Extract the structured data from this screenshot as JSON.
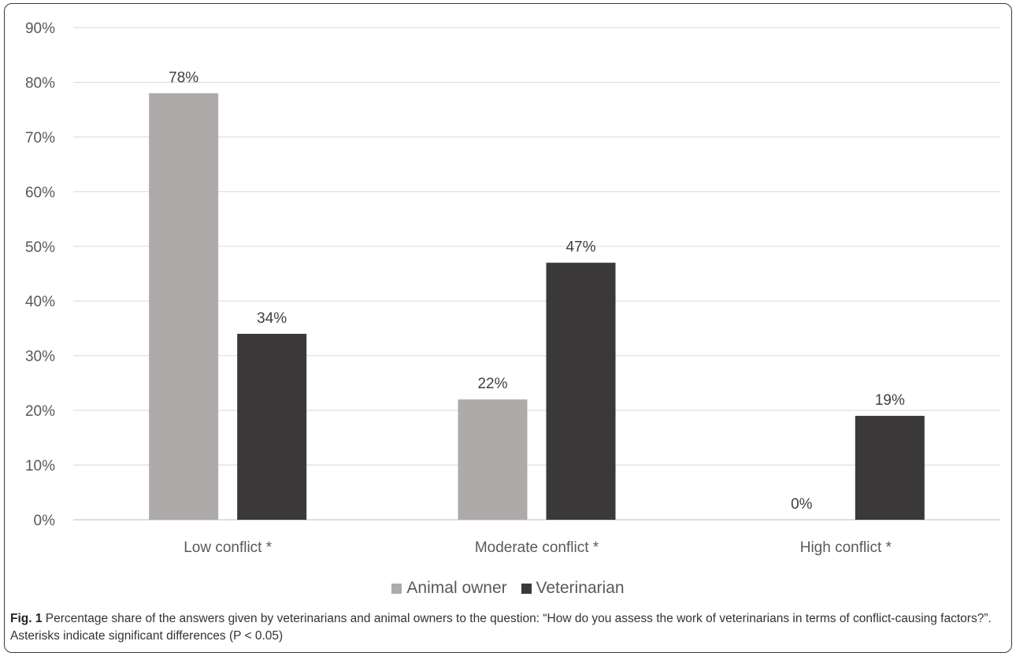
{
  "chart_data": {
    "type": "bar",
    "categories": [
      "Low conflict *",
      "Moderate conflict *",
      "High conflict *"
    ],
    "series": [
      {
        "name": "Animal owner",
        "values": [
          78,
          22,
          0
        ],
        "labels": [
          "78%",
          "22%",
          "0%"
        ],
        "color": "#aeaaaa"
      },
      {
        "name": "Veterinarian",
        "values": [
          34,
          47,
          19
        ],
        "labels": [
          "34%",
          "47%",
          "19%"
        ],
        "color": "#3a3838"
      }
    ],
    "ylim": [
      0,
      90
    ],
    "yticks": [
      "0%",
      "10%",
      "20%",
      "30%",
      "40%",
      "50%",
      "60%",
      "70%",
      "80%",
      "90%"
    ],
    "grid": true,
    "legend_position": "bottom"
  },
  "caption": {
    "label": "Fig. 1",
    "text": " Percentage share of the answers given by veterinarians and animal owners to the question: “How do you assess the work of veterinarians in terms of conflict-causing factors?”. Asterisks indicate significant differences (P < 0.05)"
  }
}
